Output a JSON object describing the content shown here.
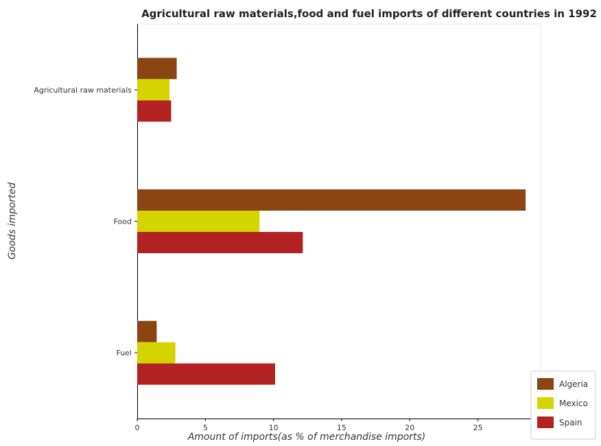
{
  "chart_data": {
    "type": "bar",
    "orientation": "horizontal",
    "title": "Agricultural raw materials,food and fuel imports of different countries in 1992",
    "xlabel": "Amount of imports(as % of merchandise imports)",
    "ylabel": "Goods imported",
    "categories": [
      "Agricultural raw materials",
      "Food",
      "Fuel"
    ],
    "xlim": [
      0,
      29.6
    ],
    "xticks": [
      0,
      5,
      10,
      15,
      20,
      25
    ],
    "series": [
      {
        "name": "Algeria",
        "color": "#8b4513",
        "values": [
          2.9,
          28.5,
          1.43
        ]
      },
      {
        "name": "Mexico",
        "color": "#d4d400",
        "values": [
          2.37,
          8.97,
          2.8
        ]
      },
      {
        "name": "Spain",
        "color": "#b22222",
        "values": [
          2.49,
          12.15,
          10.12
        ]
      }
    ],
    "grid": false,
    "legend_position": "bottom-right"
  }
}
